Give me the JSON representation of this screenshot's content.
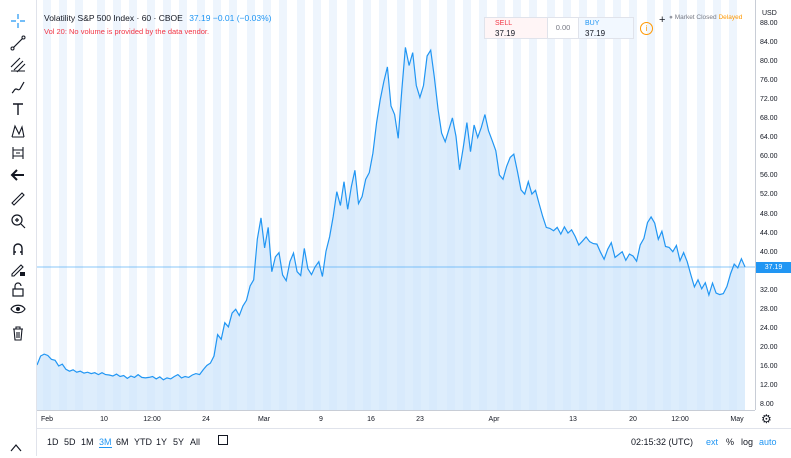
{
  "symbol": {
    "name": "Volatility S&P 500 Index",
    "interval": "60",
    "exchange": "CBOE",
    "price": "37.19",
    "change": "−0.01 (−0.03%)"
  },
  "volume_warning": "Vol 20: No volume is provided by the data vendor.",
  "trade_panel": {
    "sell_label": "SELL",
    "sell_price": "37.19",
    "spread": "0.00",
    "buy_label": "BUY",
    "buy_price": "37.19",
    "market_status": "Market Closed",
    "data_status": "Delayed"
  },
  "price_axis": {
    "currency": "USD",
    "current_label": "37.19",
    "ticks": [
      "88.00",
      "84.00",
      "80.00",
      "76.00",
      "72.00",
      "68.00",
      "64.00",
      "60.00",
      "56.00",
      "52.00",
      "48.00",
      "44.00",
      "40.00",
      "36.00",
      "32.00",
      "28.00",
      "24.00",
      "20.00",
      "16.00",
      "12.00",
      "8.00"
    ]
  },
  "time_axis": {
    "labels": [
      "Feb",
      "10",
      "12:00",
      "24",
      "Mar",
      "9",
      "16",
      "23",
      "Apr",
      "13",
      "20",
      "12:00",
      "May"
    ]
  },
  "bottom_bar": {
    "ranges": [
      "1D",
      "5D",
      "1M",
      "3M",
      "6M",
      "YTD",
      "1Y",
      "5Y",
      "All"
    ],
    "active_range": "3M",
    "clock": "02:15:32 (UTC)",
    "ext": "ext",
    "percent": "%",
    "log": "log",
    "auto": "auto"
  },
  "toolbar_icons": [
    "crosshair-icon",
    "trend-line-icon",
    "fib-icon",
    "brush-icon",
    "text-icon",
    "pattern-icon",
    "prediction-icon",
    "back-arrow-icon",
    "ruler-icon",
    "zoom-in-icon",
    "magnet-icon",
    "lock-drawings-icon",
    "lock-icon",
    "eye-icon",
    "trash-icon"
  ],
  "colors": {
    "line": "#2196f3",
    "fill": "#cfe6fb",
    "warning": "#f23645",
    "delayed": "#ff9800"
  },
  "chart_data": {
    "type": "area",
    "ylim": [
      6,
      90
    ],
    "values": [
      16.6,
      18.5,
      18.9,
      18.6,
      17.8,
      17.6,
      16.4,
      16.8,
      15.7,
      15.3,
      15.6,
      15.1,
      15.3,
      14.9,
      15.1,
      14.8,
      15.0,
      14.6,
      15.0,
      14.6,
      14.5,
      14.3,
      14.7,
      14.2,
      14.4,
      13.8,
      14.3,
      14.0,
      14.6,
      14.0,
      13.9,
      14.0,
      14.2,
      13.7,
      14.1,
      13.5,
      13.9,
      13.7,
      14.2,
      14.6,
      13.9,
      14.2,
      14.0,
      14.5,
      14.8,
      14.6,
      15.6,
      16.5,
      17.0,
      18.5,
      23.0,
      22.0,
      25.5,
      24.6,
      27.5,
      28.3,
      27.0,
      29.0,
      30.2,
      33.2,
      34.5,
      43.0,
      47.5,
      41.2,
      45.5,
      36.2,
      39.3,
      40.2,
      35.5,
      34.3,
      38.3,
      40.1,
      36.2,
      35.4,
      41.1,
      36.8,
      35.6,
      37.2,
      38.3,
      35.2,
      40.5,
      43.5,
      47.8,
      53.0,
      50.1,
      55.1,
      49.3,
      54.0,
      57.5,
      50.5,
      52.0,
      55.6,
      57.0,
      61.1,
      67.5,
      72.3,
      76.1,
      79.2,
      71.0,
      69.2,
      64.2,
      74.3,
      83.3,
      79.5,
      82.2,
      75.3,
      72.8,
      75.3,
      81.5,
      82.7,
      77.1,
      70.4,
      65.3,
      63.5,
      66.0,
      68.5,
      64.6,
      57.6,
      62.2,
      67.5,
      61.4,
      67.0,
      64.4,
      66.5,
      69.2,
      65.8,
      63.8,
      61.6,
      56.5,
      55.6,
      58.3,
      60.2,
      60.9,
      57.3,
      53.4,
      52.5,
      55.1,
      52.5,
      53.3,
      50.5,
      47.8,
      45.5,
      45.3,
      44.8,
      45.5,
      44.1,
      45.6,
      44.3,
      45.0,
      43.6,
      41.8,
      42.6,
      43.5,
      42.5,
      42.1,
      42.0,
      40.3,
      38.8,
      40.9,
      42.3,
      39.2,
      39.8,
      40.4,
      38.6,
      39.9,
      39.5,
      38.4,
      41.8,
      43.2,
      46.5,
      47.7,
      46.4,
      43.0,
      44.7,
      41.5,
      41.3,
      40.4,
      41.7,
      38.5,
      40.2,
      38.3,
      35.6,
      33.0,
      34.5,
      32.6,
      33.9,
      31.3,
      33.8,
      31.7,
      31.4,
      31.6,
      33.1,
      35.8,
      37.8,
      37.0,
      38.9,
      37.2
    ]
  }
}
